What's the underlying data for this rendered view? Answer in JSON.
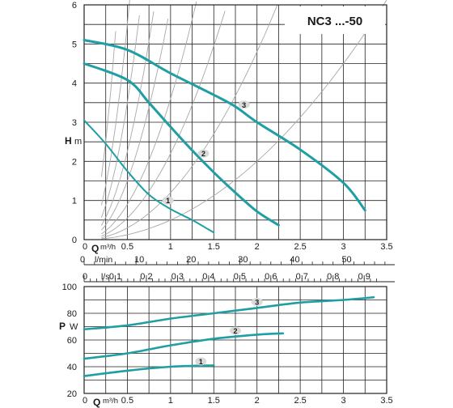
{
  "title": "NC3 ...-50",
  "colors": {
    "curve": "#1f9ea3",
    "grid": "#222222",
    "helper": "#a8a8a8",
    "badge": "#d9d9d9"
  },
  "chart_data": [
    {
      "type": "line",
      "title": "NC3 ...-50",
      "ylabel": "H m",
      "xlabel": "Q m³/h",
      "xlim": [
        0,
        3.5
      ],
      "ylim": [
        0,
        6
      ],
      "x_ticks": [
        "0",
        "0.5",
        "1",
        "1.5",
        "2",
        "2.5",
        "3",
        "3.5"
      ],
      "y_ticks": [
        "0",
        "1",
        "2",
        "3",
        "4",
        "5",
        "6"
      ],
      "secondary_axes": [
        {
          "unit": "l/min",
          "ticks": [
            "0",
            "10",
            "20",
            "30",
            "40",
            "50"
          ],
          "values": [
            0,
            10,
            20,
            30,
            40,
            50
          ]
        },
        {
          "unit": "l/s",
          "ticks": [
            "0",
            "0.1",
            "0.2",
            "0.3",
            "0.4",
            "0.5",
            "0.6",
            "0.7",
            "0.8",
            "0.9"
          ],
          "values": [
            0,
            0.1,
            0.2,
            0.3,
            0.4,
            0.5,
            0.6,
            0.7,
            0.8,
            0.9
          ]
        }
      ],
      "grid": true,
      "series": [
        {
          "name": "1",
          "x": [
            0,
            0.25,
            0.5,
            0.75,
            1.0,
            1.25,
            1.5
          ],
          "y": [
            3.05,
            2.45,
            1.75,
            1.15,
            0.78,
            0.5,
            0.18
          ]
        },
        {
          "name": "2",
          "x": [
            0,
            0.5,
            0.75,
            1.0,
            1.25,
            1.5,
            1.75,
            2.0,
            2.25
          ],
          "y": [
            4.5,
            4.08,
            3.5,
            2.88,
            2.28,
            1.72,
            1.2,
            0.72,
            0.37
          ]
        },
        {
          "name": "3",
          "x": [
            0,
            0.5,
            1.0,
            1.5,
            1.75,
            2.0,
            2.5,
            3.0,
            3.25
          ],
          "y": [
            5.1,
            4.85,
            4.25,
            3.7,
            3.4,
            3.0,
            2.3,
            1.45,
            0.75
          ]
        }
      ]
    },
    {
      "type": "line",
      "ylabel": "P W",
      "xlabel": "Q m³/h",
      "xlim": [
        0,
        3.5
      ],
      "ylim": [
        20,
        100
      ],
      "x_ticks": [
        "0",
        "0.5",
        "1",
        "1.5",
        "2",
        "2.5",
        "3",
        "3.5"
      ],
      "y_ticks": [
        "20",
        "40",
        "60",
        "80",
        "100"
      ],
      "grid": true,
      "series": [
        {
          "name": "1",
          "x": [
            0,
            0.5,
            1.0,
            1.5
          ],
          "y": [
            33,
            37,
            40,
            41
          ]
        },
        {
          "name": "2",
          "x": [
            0,
            0.5,
            1.0,
            1.5,
            2.0,
            2.3
          ],
          "y": [
            46,
            50,
            56,
            61,
            64,
            65
          ]
        },
        {
          "name": "3",
          "x": [
            0,
            0.5,
            1.0,
            1.5,
            2.0,
            2.5,
            3.0,
            3.35
          ],
          "y": [
            68,
            71,
            76,
            80,
            84,
            88,
            90,
            92
          ]
        }
      ]
    }
  ]
}
